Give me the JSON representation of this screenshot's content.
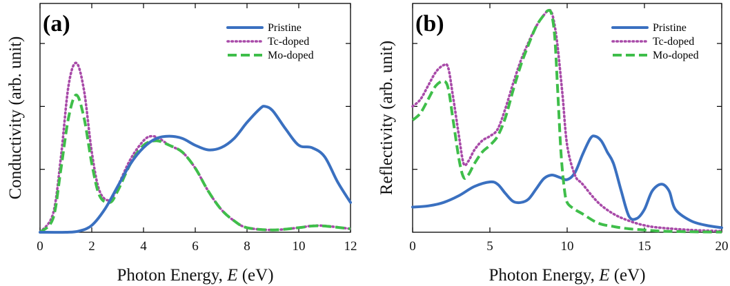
{
  "chart_data": [
    {
      "type": "line",
      "panel_label": "(a)",
      "xlabel": "Photon Energy, ",
      "xlabel_var": "E",
      "xlabel_unit": " (eV)",
      "ylabel": "Conductivity (arb. unit)",
      "xlim": [
        0,
        12
      ],
      "ylim": [
        0,
        1
      ],
      "xticks": [
        0,
        2,
        4,
        6,
        8,
        10,
        12
      ],
      "y_tick_labels_shown": false,
      "grid": false,
      "legend_position": "top-right",
      "series": [
        {
          "name": "Pristine",
          "color": "#3a70c0",
          "style": "solid",
          "x": [
            0,
            1.0,
            1.5,
            2.0,
            2.5,
            3.0,
            3.5,
            4.0,
            4.5,
            5.0,
            5.5,
            6.0,
            6.5,
            7.0,
            7.5,
            8.0,
            8.5,
            8.7,
            9.0,
            9.5,
            10.0,
            10.5,
            11.0,
            11.5,
            12.0
          ],
          "y": [
            0,
            0.0,
            0.005,
            0.03,
            0.1,
            0.2,
            0.3,
            0.37,
            0.41,
            0.42,
            0.41,
            0.38,
            0.36,
            0.37,
            0.41,
            0.48,
            0.54,
            0.55,
            0.53,
            0.45,
            0.38,
            0.37,
            0.33,
            0.22,
            0.13
          ]
        },
        {
          "name": "Tc-doped",
          "color": "#a84aa8",
          "style": "dotted",
          "x": [
            0,
            0.5,
            0.8,
            1.1,
            1.4,
            1.7,
            2.0,
            2.3,
            2.7,
            3.0,
            3.5,
            4.0,
            4.3,
            4.6,
            5.0,
            5.5,
            6.0,
            6.5,
            7.0,
            7.5,
            8.0,
            9.0,
            10.0,
            10.5,
            11.0,
            12.0
          ],
          "y": [
            0,
            0.08,
            0.32,
            0.64,
            0.74,
            0.62,
            0.35,
            0.18,
            0.14,
            0.2,
            0.32,
            0.4,
            0.42,
            0.41,
            0.38,
            0.35,
            0.28,
            0.18,
            0.1,
            0.05,
            0.02,
            0.01,
            0.02,
            0.028,
            0.028,
            0.015
          ]
        },
        {
          "name": "Mo-doped",
          "color": "#3fbe4a",
          "style": "dashed",
          "x": [
            0,
            0.5,
            0.8,
            1.1,
            1.4,
            1.7,
            2.0,
            2.3,
            2.7,
            3.0,
            3.5,
            4.0,
            4.5,
            5.0,
            5.5,
            6.0,
            6.5,
            7.0,
            7.5,
            8.0,
            9.0,
            10.0,
            10.5,
            11.0,
            12.0
          ],
          "y": [
            0,
            0.06,
            0.27,
            0.5,
            0.6,
            0.5,
            0.3,
            0.16,
            0.13,
            0.18,
            0.3,
            0.38,
            0.4,
            0.38,
            0.35,
            0.28,
            0.18,
            0.1,
            0.05,
            0.02,
            0.01,
            0.02,
            0.027,
            0.027,
            0.015
          ]
        }
      ]
    },
    {
      "type": "line",
      "panel_label": "(b)",
      "xlabel": "Photon Energy, ",
      "xlabel_var": "E",
      "xlabel_unit": " (eV)",
      "ylabel": "Reflectivity (arb. unit)",
      "xlim": [
        0,
        20
      ],
      "ylim": [
        0,
        1
      ],
      "xticks": [
        0,
        5,
        10,
        15,
        20
      ],
      "y_tick_labels_shown": false,
      "grid": false,
      "legend_position": "top-right",
      "series": [
        {
          "name": "Pristine",
          "color": "#3a70c0",
          "style": "solid",
          "x": [
            0,
            1,
            2,
            3,
            4,
            5,
            5.5,
            6,
            6.5,
            7,
            7.5,
            8,
            8.5,
            9,
            9.5,
            10,
            10.5,
            11,
            11.5,
            11.8,
            12.2,
            12.6,
            13,
            13.5,
            14,
            14.5,
            15,
            15.5,
            16.1,
            16.6,
            17,
            18,
            19,
            20
          ],
          "y": [
            0.11,
            0.115,
            0.13,
            0.16,
            0.2,
            0.22,
            0.21,
            0.17,
            0.135,
            0.13,
            0.145,
            0.19,
            0.235,
            0.25,
            0.24,
            0.23,
            0.26,
            0.34,
            0.41,
            0.42,
            0.4,
            0.35,
            0.3,
            0.18,
            0.07,
            0.06,
            0.1,
            0.18,
            0.21,
            0.18,
            0.1,
            0.05,
            0.03,
            0.02
          ]
        },
        {
          "name": "Tc-doped",
          "color": "#a84aa8",
          "style": "dotted",
          "x": [
            0,
            0.5,
            1.0,
            1.5,
            2.0,
            2.3,
            2.6,
            3.0,
            3.3,
            3.6,
            4.0,
            4.5,
            5.0,
            5.5,
            6.0,
            6.5,
            7.0,
            7.5,
            8.0,
            8.5,
            8.8,
            9.0,
            9.2,
            9.4,
            9.7,
            10.0,
            10.5,
            11.0,
            12.0,
            13.0,
            14.0,
            15.0,
            16.0,
            18.0,
            20.0
          ],
          "y": [
            0.55,
            0.58,
            0.64,
            0.7,
            0.73,
            0.72,
            0.6,
            0.42,
            0.3,
            0.31,
            0.36,
            0.4,
            0.42,
            0.45,
            0.54,
            0.65,
            0.75,
            0.83,
            0.9,
            0.95,
            0.97,
            0.96,
            0.9,
            0.8,
            0.6,
            0.38,
            0.25,
            0.21,
            0.13,
            0.08,
            0.05,
            0.03,
            0.02,
            0.01,
            0.005
          ]
        },
        {
          "name": "Mo-doped",
          "color": "#3fbe4a",
          "style": "dashed",
          "x": [
            0,
            0.5,
            1.0,
            1.5,
            2.0,
            2.3,
            2.6,
            3.0,
            3.3,
            3.6,
            4.0,
            4.5,
            5.0,
            5.5,
            6.0,
            6.5,
            7.0,
            7.5,
            8.0,
            8.5,
            8.8,
            9.0,
            9.2,
            9.4,
            9.6,
            9.8,
            10.0,
            10.5,
            11.0,
            12.0,
            13.0,
            14.0,
            15.0,
            16.0,
            18.0,
            20.0
          ],
          "y": [
            0.49,
            0.52,
            0.58,
            0.64,
            0.66,
            0.63,
            0.5,
            0.32,
            0.24,
            0.25,
            0.3,
            0.35,
            0.38,
            0.42,
            0.5,
            0.62,
            0.73,
            0.82,
            0.9,
            0.95,
            0.97,
            0.95,
            0.85,
            0.6,
            0.35,
            0.2,
            0.13,
            0.1,
            0.08,
            0.04,
            0.025,
            0.015,
            0.01,
            0.005,
            0.002,
            0.001
          ]
        }
      ]
    }
  ]
}
